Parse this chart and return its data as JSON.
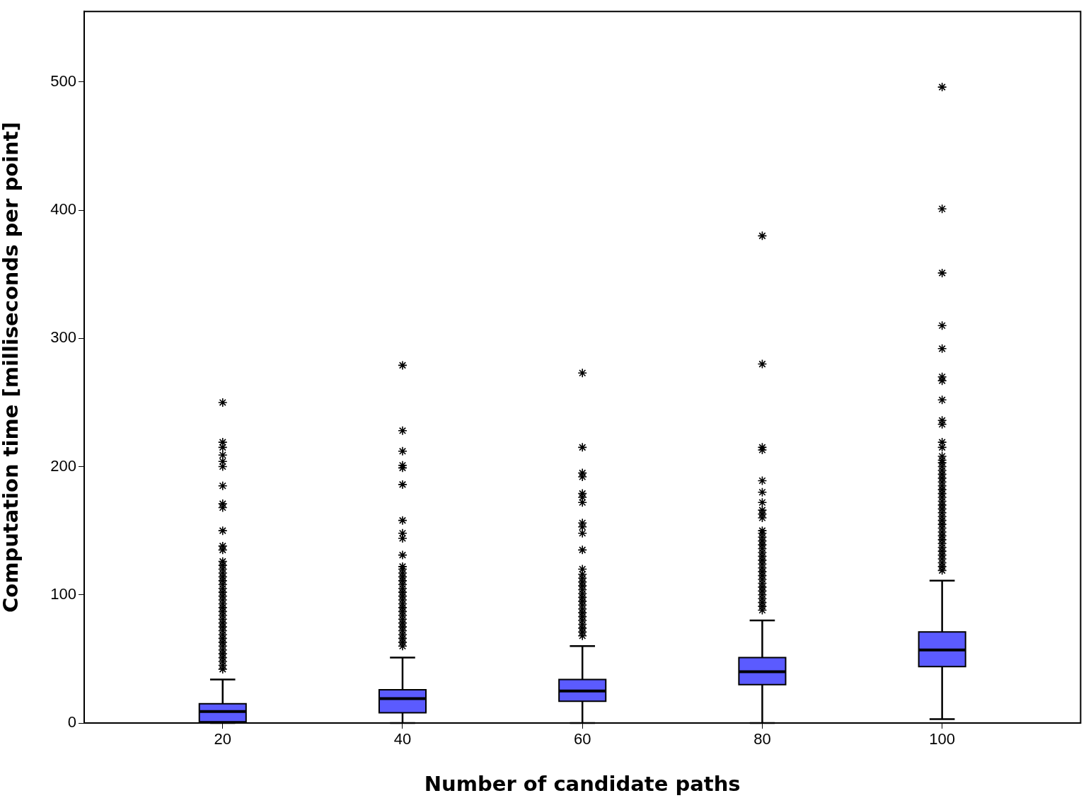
{
  "chart_data": {
    "type": "box",
    "xlabel": "Number of candidate paths",
    "ylabel": "Computation time [milliseconds per point]",
    "categories": [
      "20",
      "40",
      "60",
      "80",
      "100"
    ],
    "ylim": [
      0,
      555
    ],
    "yticks": [
      0,
      100,
      200,
      300,
      400,
      500
    ],
    "grid": false,
    "legend": false,
    "marker": "star",
    "series": [
      {
        "color": "#5b5bff",
        "boxes": [
          {
            "low": 0,
            "q1": 1,
            "median": 9,
            "q3": 15,
            "high": 34,
            "outliers": [
              42,
              45,
              48,
              51,
              54,
              57,
              60,
              63,
              66,
              69,
              72,
              75,
              78,
              81,
              84,
              87,
              90,
              93,
              96,
              99,
              102,
              105,
              108,
              111,
              114,
              117,
              120,
              123,
              126,
              135,
              138,
              150,
              168,
              171,
              185,
              200,
              204,
              209,
              215,
              219,
              250
            ]
          },
          {
            "low": 0,
            "q1": 8,
            "median": 19,
            "q3": 26,
            "high": 51,
            "outliers": [
              60,
              63,
              66,
              69,
              72,
              75,
              78,
              81,
              84,
              87,
              90,
              93,
              96,
              99,
              102,
              105,
              108,
              111,
              114,
              117,
              120,
              122,
              131,
              144,
              148,
              158,
              186,
              199,
              201,
              212,
              228,
              279
            ]
          },
          {
            "low": 0,
            "q1": 17,
            "median": 25,
            "q3": 34,
            "high": 60,
            "outliers": [
              68,
              71,
              74,
              77,
              80,
              83,
              86,
              89,
              92,
              95,
              98,
              101,
              104,
              107,
              110,
              113,
              116,
              120,
              135,
              148,
              153,
              156,
              172,
              176,
              179,
              192,
              195,
              215,
              273
            ]
          },
          {
            "low": 0,
            "q1": 30,
            "median": 40,
            "q3": 51,
            "high": 80,
            "outliers": [
              88,
              91,
              94,
              97,
              100,
              103,
              106,
              109,
              112,
              115,
              118,
              121,
              124,
              127,
              130,
              133,
              136,
              139,
              142,
              145,
              148,
              150,
              160,
              163,
              166,
              172,
              180,
              189,
              213,
              215,
              280,
              380
            ]
          },
          {
            "low": 3,
            "q1": 44,
            "median": 57,
            "q3": 71,
            "high": 111,
            "outliers": [
              119,
              122,
              125,
              128,
              131,
              134,
              137,
              140,
              143,
              146,
              149,
              152,
              155,
              158,
              161,
              164,
              167,
              170,
              173,
              176,
              179,
              182,
              185,
              188,
              191,
              194,
              197,
              200,
              203,
              205,
              208,
              215,
              219,
              233,
              236,
              252,
              267,
              270,
              292,
              310,
              351,
              401,
              496
            ]
          }
        ]
      }
    ]
  }
}
